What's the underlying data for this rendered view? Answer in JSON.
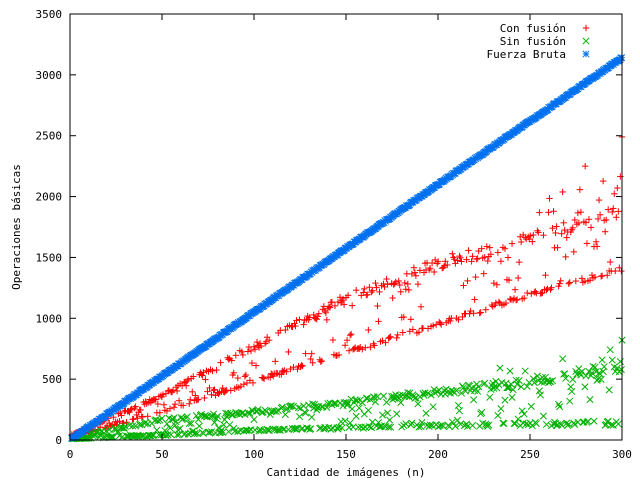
{
  "chart_data": {
    "type": "scatter",
    "title": "",
    "xlabel": "Cantidad de imágenes (n)",
    "ylabel": "Operaciones básicas",
    "xlim": [
      0,
      300
    ],
    "ylim": [
      0,
      3500
    ],
    "x_ticks": [
      0,
      50,
      100,
      150,
      200,
      250,
      300
    ],
    "y_ticks": [
      0,
      500,
      1000,
      1500,
      2000,
      2500,
      3000,
      3500
    ],
    "grid": false,
    "legend_position": "top-right",
    "series": [
      {
        "name": "Con fusión",
        "marker": "plus",
        "color": "#ff0000",
        "trend": {
          "lower_band": [
            [
              0,
              20
            ],
            [
              50,
              230
            ],
            [
              100,
              480
            ],
            [
              150,
              720
            ],
            [
              200,
              950
            ],
            [
              250,
              1200
            ],
            [
              300,
              1400
            ]
          ],
          "upper_band": [
            [
              0,
              40
            ],
            [
              50,
              380
            ],
            [
              100,
              800
            ],
            [
              150,
              1200
            ],
            [
              200,
              1500
            ],
            [
              250,
              1700
            ],
            [
              300,
              1950
            ]
          ],
          "max_outliers": [
            [
              280,
              2250
            ],
            [
              300,
              2490
            ]
          ]
        }
      },
      {
        "name": "Sin fusión",
        "marker": "x",
        "color": "#00b000",
        "trend": {
          "lower_band": [
            [
              0,
              10
            ],
            [
              50,
              40
            ],
            [
              100,
              80
            ],
            [
              150,
              100
            ],
            [
              200,
              120
            ],
            [
              250,
              130
            ],
            [
              300,
              140
            ]
          ],
          "upper_band": [
            [
              0,
              20
            ],
            [
              50,
              180
            ],
            [
              100,
              250
            ],
            [
              150,
              330
            ],
            [
              200,
              420
            ],
            [
              250,
              520
            ],
            [
              300,
              650
            ]
          ],
          "max_outliers": [
            [
              300,
              820
            ]
          ]
        }
      },
      {
        "name": "Fuerza Bruta",
        "marker": "star",
        "color": "#0070f0",
        "trend": {
          "line": [
            [
              0,
              0
            ],
            [
              100,
              1050
            ],
            [
              200,
              2100
            ],
            [
              300,
              3140
            ]
          ]
        }
      }
    ]
  }
}
